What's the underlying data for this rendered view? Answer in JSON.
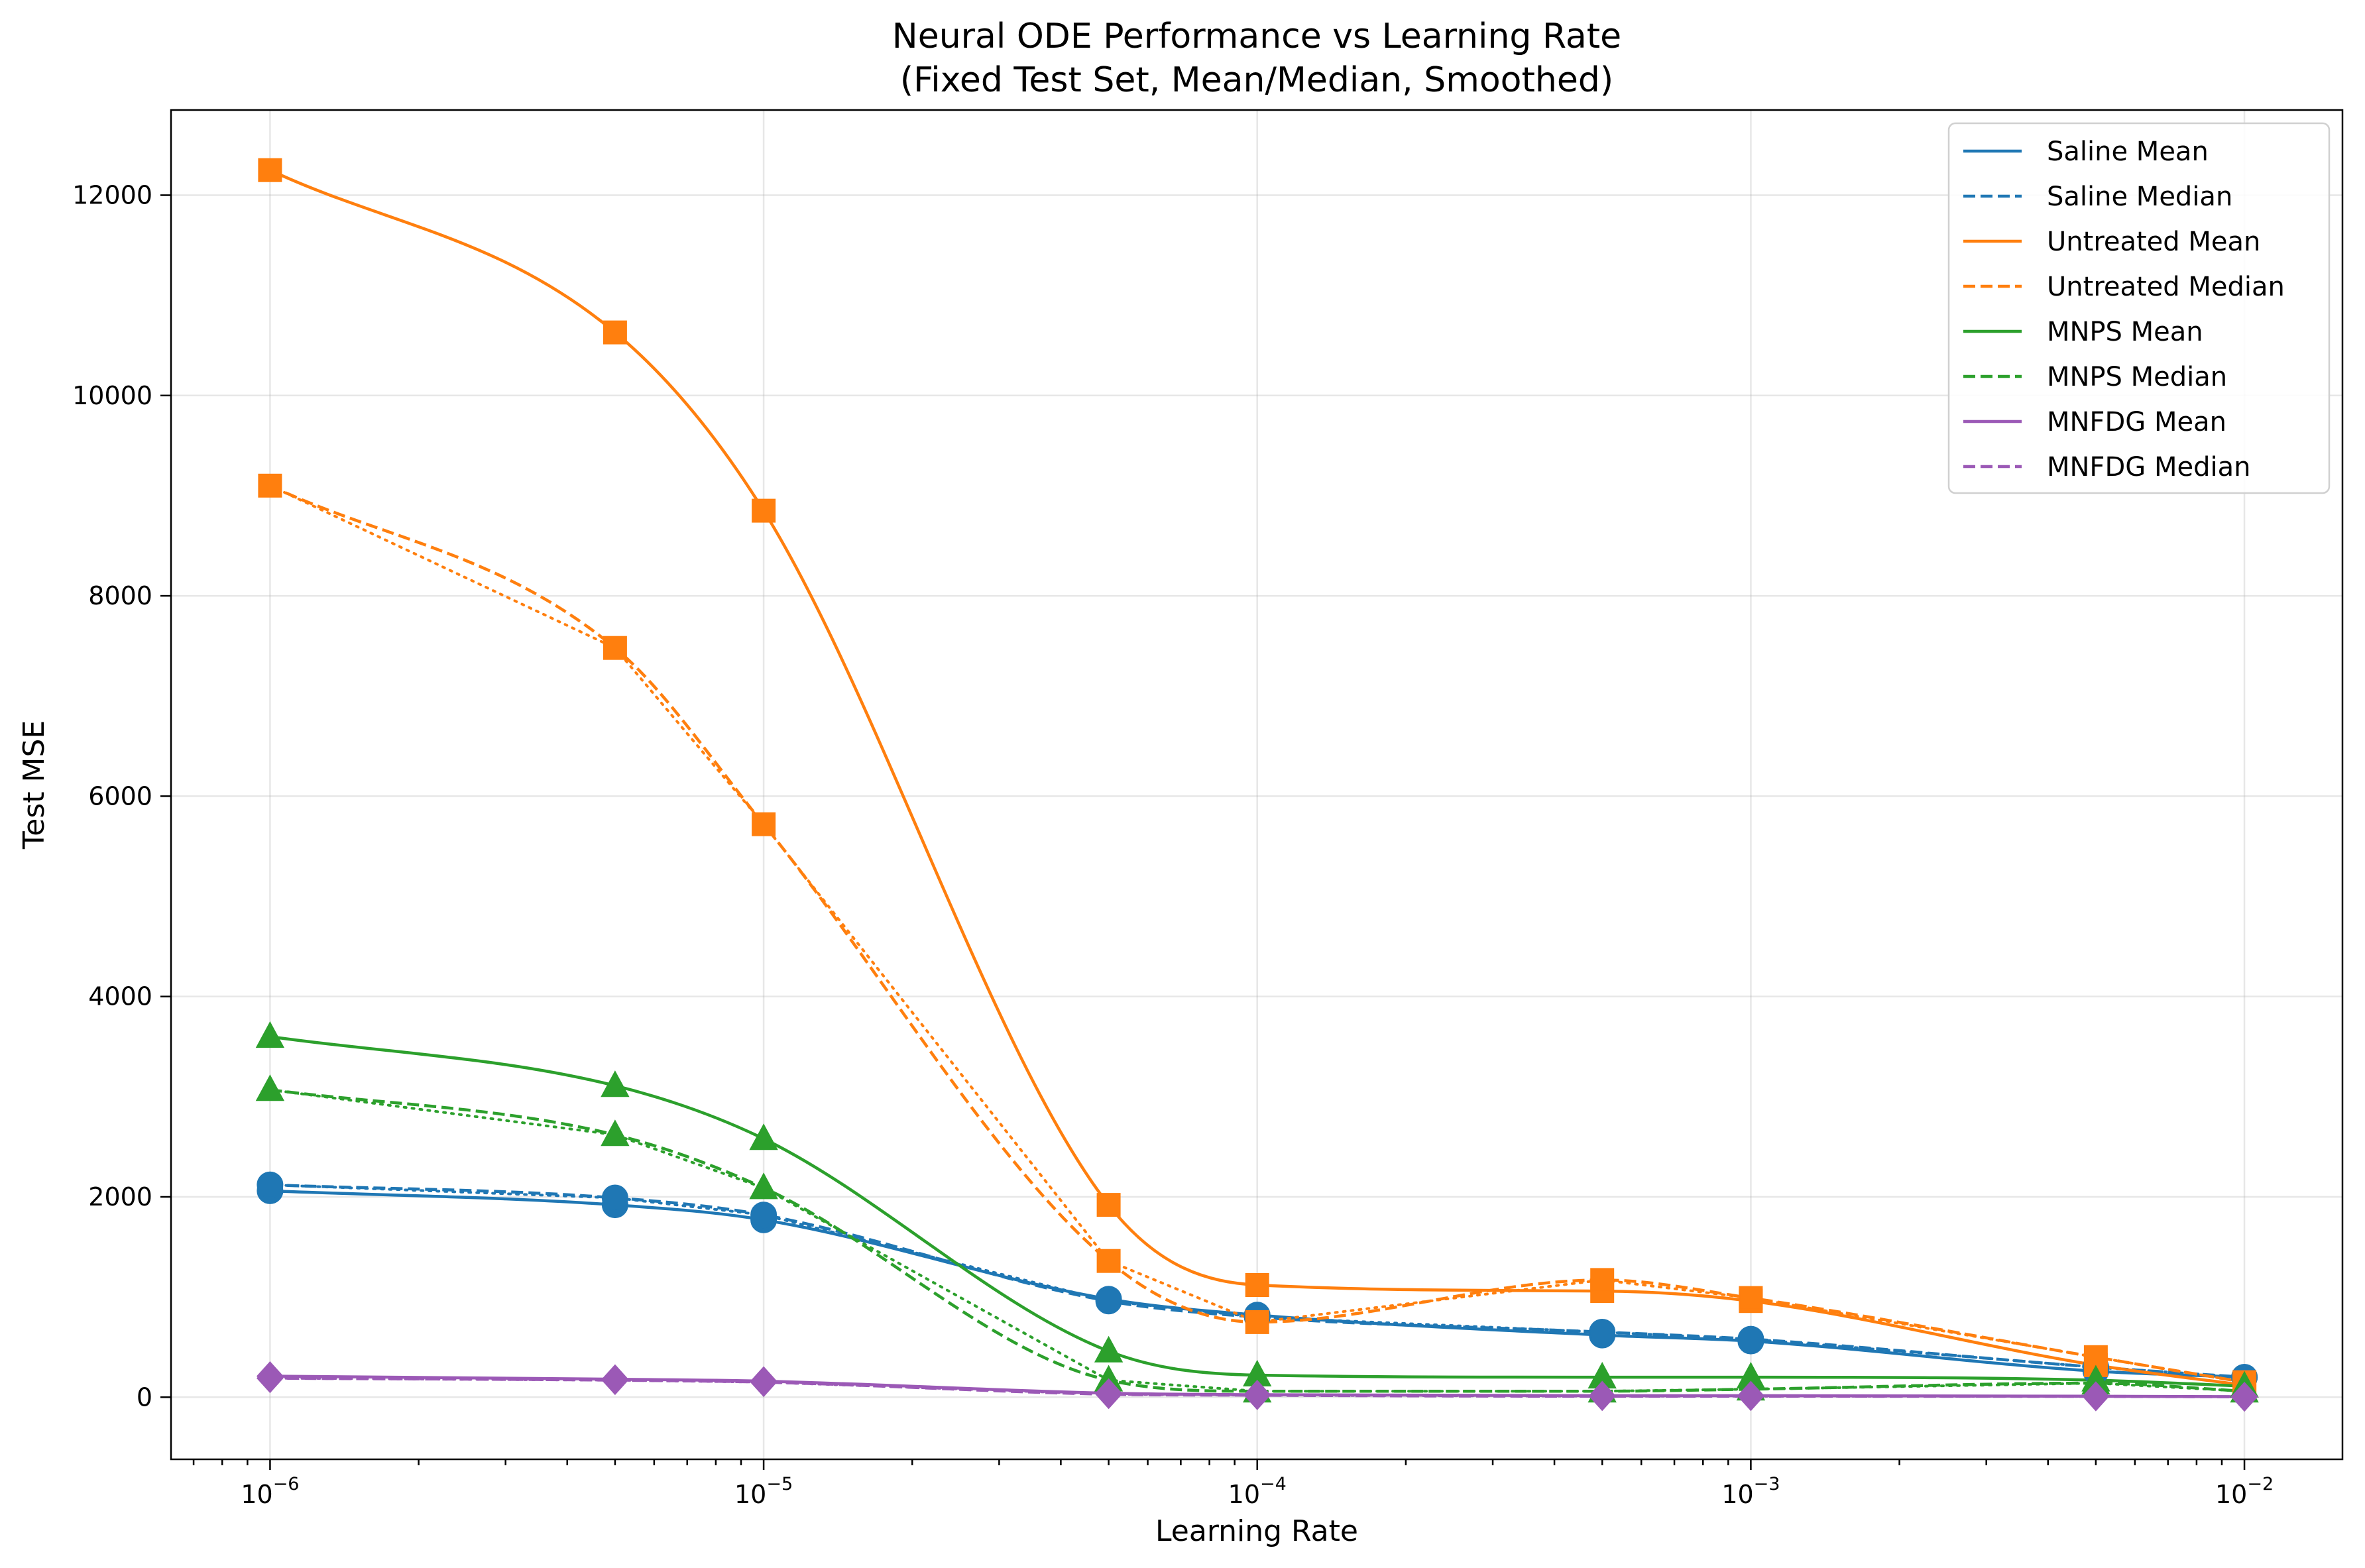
{
  "chart_data": {
    "type": "line",
    "title": [
      "Neural ODE Performance vs Learning Rate",
      "(Fixed Test Set, Mean/Median, Smoothed)"
    ],
    "xlabel": "Learning Rate",
    "ylabel": "Test MSE",
    "xscale": "log",
    "xlim": [
      6.3e-07,
      0.0158
    ],
    "ylim": [
      -620,
      12850
    ],
    "grid": true,
    "legend_position": "top-right",
    "x": [
      1e-06,
      5e-06,
      1e-05,
      5e-05,
      0.0001,
      0.0005,
      0.001,
      0.005,
      0.01
    ],
    "x_ticks": [
      {
        "value": 1e-06,
        "base": "10",
        "exp": "−6"
      },
      {
        "value": 1e-05,
        "base": "10",
        "exp": "−5"
      },
      {
        "value": 0.0001,
        "base": "10",
        "exp": "−4"
      },
      {
        "value": 0.001,
        "base": "10",
        "exp": "−3"
      },
      {
        "value": 0.01,
        "base": "10",
        "exp": "−2"
      }
    ],
    "y_ticks": [
      0,
      2000,
      4000,
      6000,
      8000,
      10000,
      12000
    ],
    "series": [
      {
        "name": "Saline Mean",
        "group": "Saline",
        "stat": "mean",
        "color": "#1f77b4",
        "dash": "solid",
        "marker": "circle",
        "values": [
          2060,
          1920,
          1770,
          980,
          820,
          620,
          560,
          260,
          200
        ]
      },
      {
        "name": "Saline Median",
        "group": "Saline",
        "stat": "median",
        "color": "#1f77b4",
        "dash": "dashed",
        "marker": "circle",
        "values": [
          2120,
          1990,
          1820,
          960,
          800,
          650,
          580,
          300,
          200
        ]
      },
      {
        "name": "Untreated Mean",
        "group": "Untreated",
        "stat": "mean",
        "color": "#ff7f0e",
        "dash": "solid",
        "marker": "square",
        "values": [
          12250,
          10630,
          8850,
          1920,
          1120,
          1060,
          960,
          320,
          120
        ]
      },
      {
        "name": "Untreated Median",
        "group": "Untreated",
        "stat": "median",
        "color": "#ff7f0e",
        "dash": "dashed",
        "marker": "square",
        "values": [
          9100,
          7480,
          5720,
          1360,
          750,
          1170,
          990,
          400,
          150
        ]
      },
      {
        "name": "MNPS Mean",
        "group": "MNPS",
        "stat": "mean",
        "color": "#2ca02c",
        "dash": "solid",
        "marker": "triangle",
        "values": [
          3600,
          3110,
          2580,
          460,
          220,
          200,
          200,
          170,
          110
        ]
      },
      {
        "name": "MNPS Median",
        "group": "MNPS",
        "stat": "median",
        "color": "#2ca02c",
        "dash": "dashed",
        "marker": "triangle",
        "values": [
          3070,
          2620,
          2090,
          170,
          60,
          60,
          80,
          140,
          60
        ]
      },
      {
        "name": "MNFDG Mean",
        "group": "MNFDG",
        "stat": "mean",
        "color": "#9b59b6",
        "dash": "solid",
        "marker": "diamond",
        "values": [
          210,
          180,
          160,
          40,
          25,
          15,
          15,
          10,
          5
        ]
      },
      {
        "name": "MNFDG Median",
        "group": "MNFDG",
        "stat": "median",
        "color": "#9b59b6",
        "dash": "dashed",
        "marker": "diamond",
        "values": [
          190,
          170,
          150,
          30,
          20,
          10,
          10,
          8,
          4
        ]
      }
    ]
  }
}
